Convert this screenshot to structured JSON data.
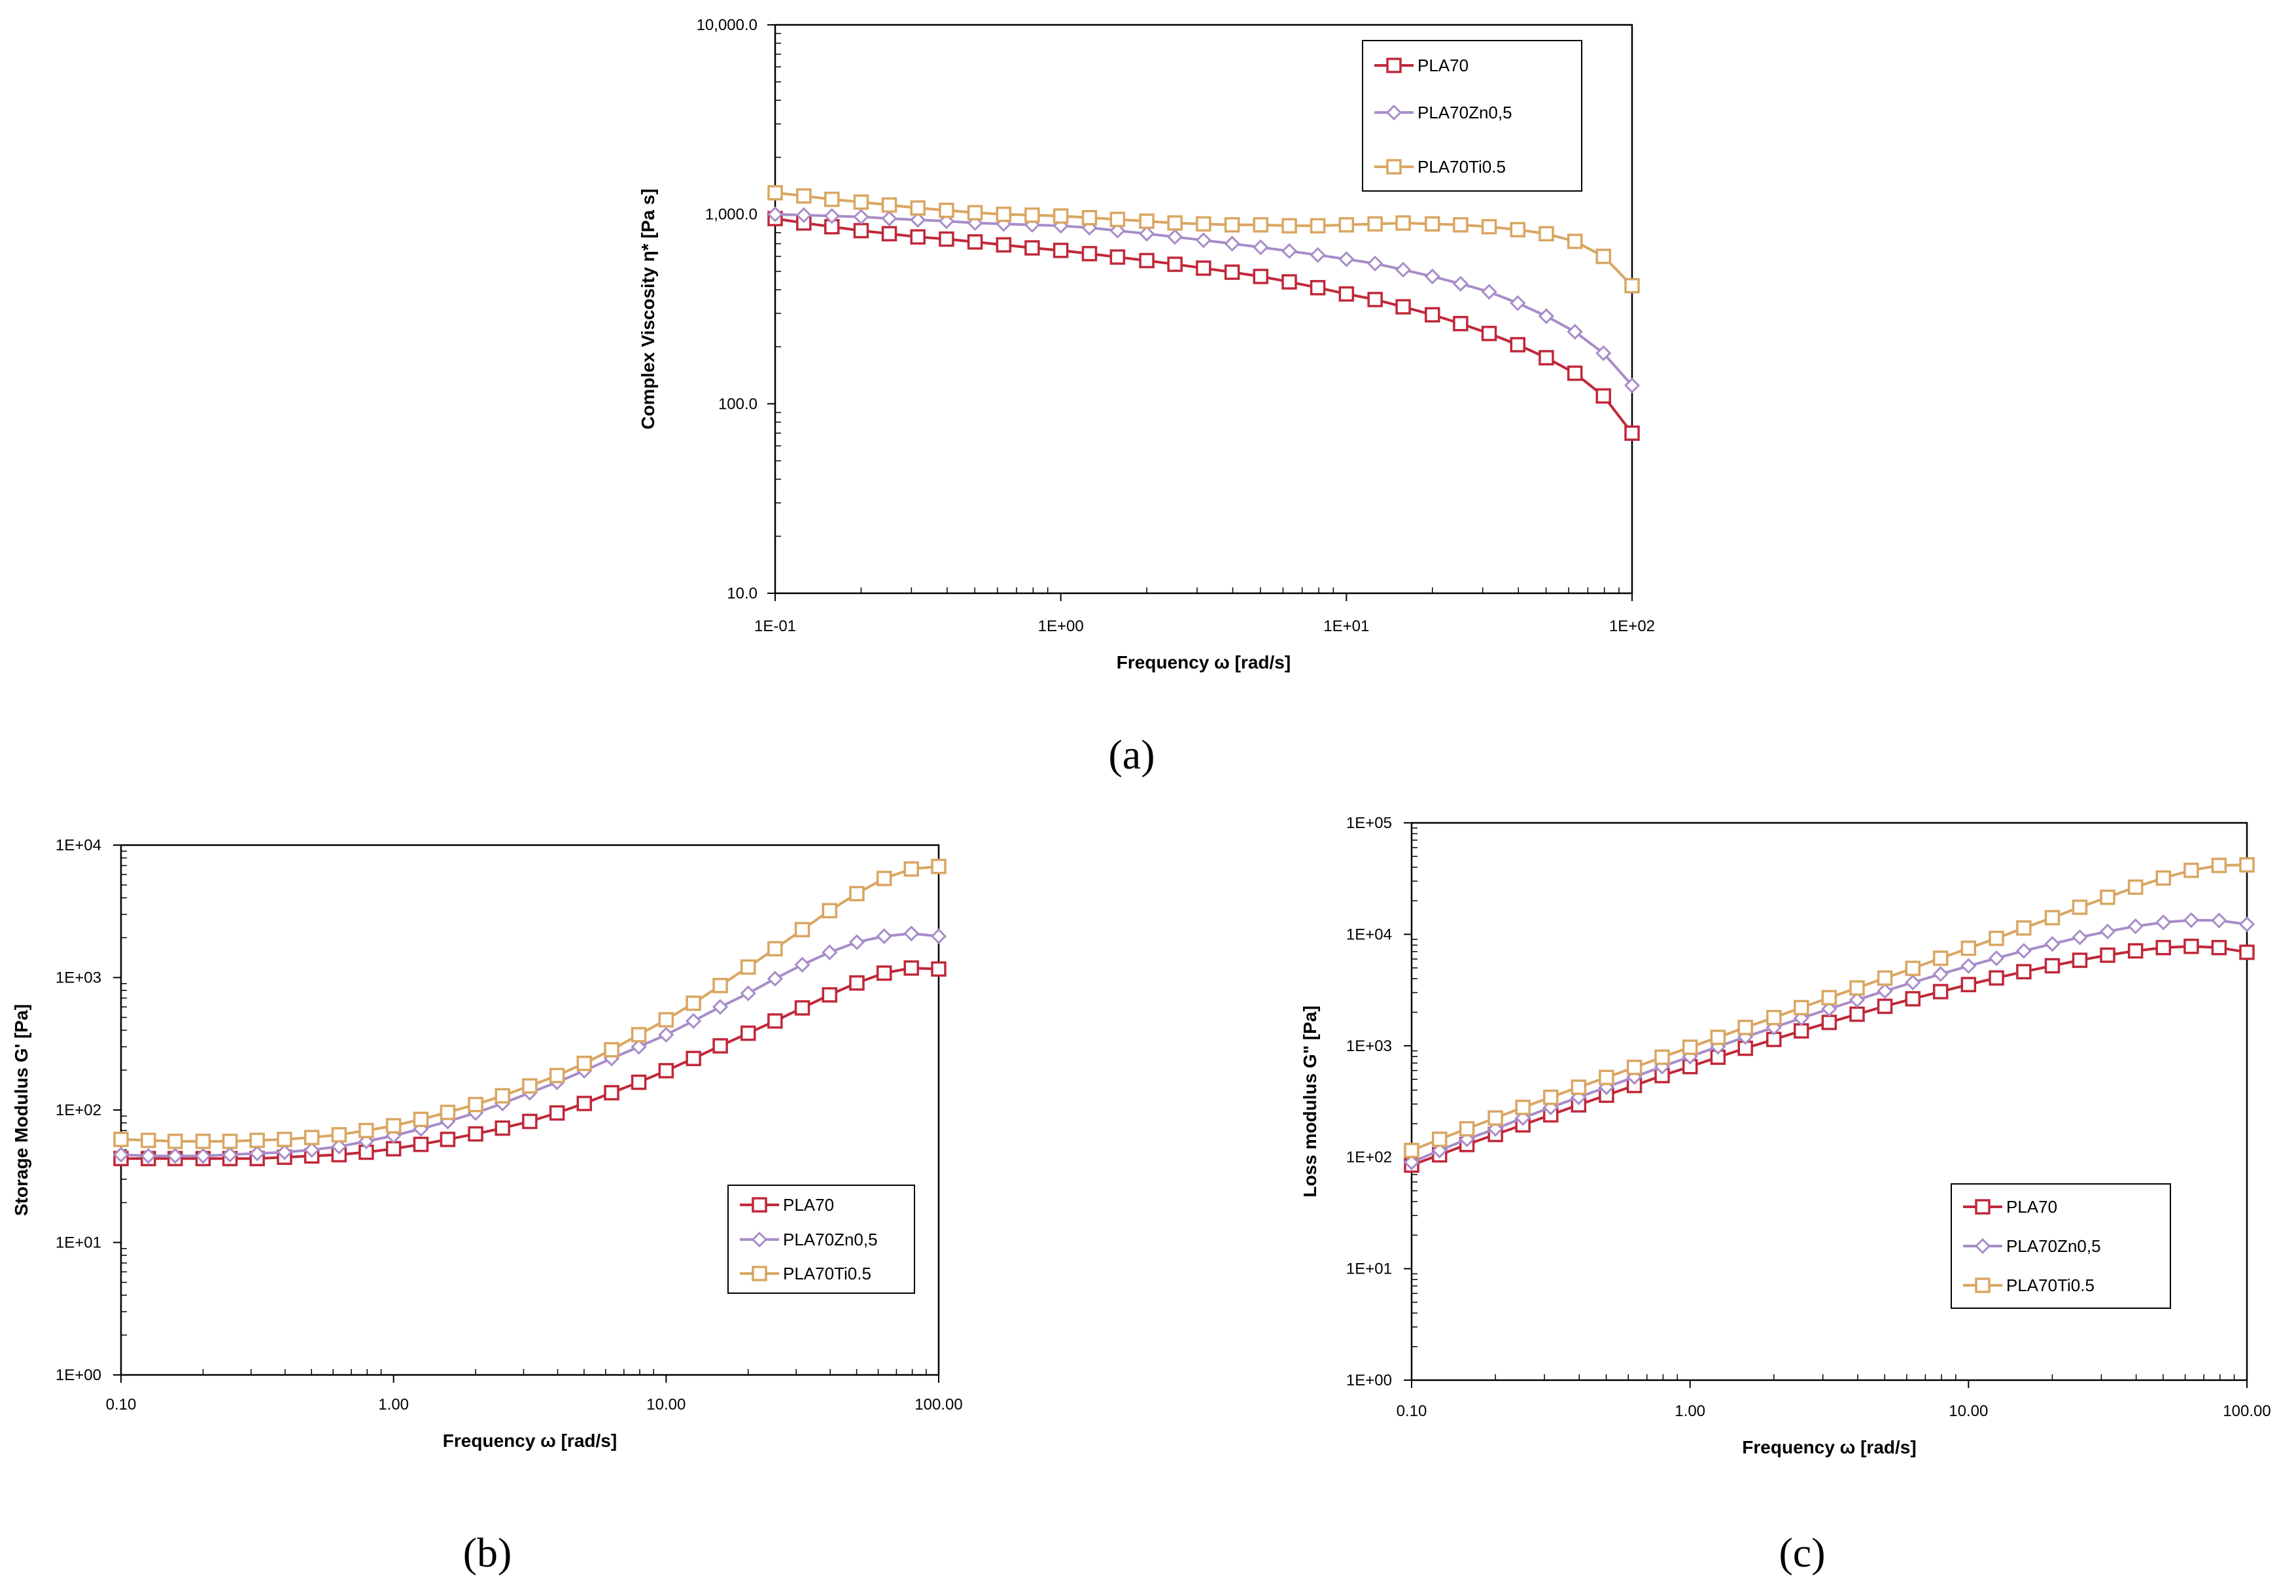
{
  "colors": {
    "PLA70": "#c0283a",
    "PLA70Zn0,5": "#a88cc8",
    "PLA70Ti0.5": "#d9a662"
  },
  "chart_data": [
    {
      "id": "a",
      "panel_label": "(a)",
      "type": "line",
      "xscale": "log",
      "yscale": "log",
      "xlim": [
        0.1,
        100
      ],
      "ylim": [
        10,
        10000
      ],
      "xlabel": "Frequency ω [rad/s]",
      "ylabel": "Complex Viscosity η* [Pa s]",
      "xticks": [
        0.1,
        1,
        10,
        100
      ],
      "xtick_labels": [
        "1E-01",
        "1E+00",
        "1E+01",
        "1E+02"
      ],
      "yticks": [
        10,
        100,
        1000,
        10000
      ],
      "ytick_labels": [
        "10.0",
        "100.0",
        "1,000.0",
        "10,000.0"
      ],
      "legend": "top-right",
      "x": [
        0.1,
        0.126,
        0.158,
        0.2,
        0.251,
        0.316,
        0.398,
        0.501,
        0.631,
        0.794,
        1,
        1.26,
        1.58,
        2,
        2.51,
        3.16,
        3.98,
        5.01,
        6.31,
        7.94,
        10,
        12.6,
        15.8,
        20,
        25.1,
        31.6,
        39.8,
        50.1,
        63.1,
        79.4,
        100
      ],
      "series": [
        {
          "name": "PLA70",
          "marker": "square",
          "values": [
            950,
            900,
            860,
            820,
            790,
            760,
            740,
            715,
            690,
            665,
            645,
            620,
            595,
            570,
            545,
            520,
            495,
            470,
            440,
            410,
            380,
            355,
            325,
            295,
            265,
            235,
            205,
            175,
            145,
            110,
            70
          ]
        },
        {
          "name": "PLA70Zn0,5",
          "marker": "diamond",
          "values": [
            1000,
            990,
            980,
            970,
            950,
            935,
            920,
            900,
            890,
            880,
            870,
            850,
            820,
            790,
            760,
            730,
            700,
            670,
            640,
            610,
            580,
            550,
            510,
            470,
            430,
            390,
            340,
            290,
            240,
            185,
            125
          ]
        },
        {
          "name": "PLA70Ti0.5",
          "marker": "square",
          "values": [
            1300,
            1250,
            1200,
            1160,
            1120,
            1080,
            1050,
            1020,
            1000,
            990,
            980,
            960,
            940,
            920,
            900,
            890,
            880,
            880,
            870,
            870,
            880,
            890,
            900,
            890,
            880,
            860,
            830,
            790,
            720,
            600,
            420
          ]
        }
      ]
    },
    {
      "id": "b",
      "panel_label": "(b)",
      "type": "line",
      "xscale": "log",
      "yscale": "log",
      "xlim": [
        0.1,
        100
      ],
      "ylim": [
        1,
        10000
      ],
      "xlabel": "Frequency ω [rad/s]",
      "ylabel": "Storage Modulus G' [Pa]",
      "xticks": [
        0.1,
        1,
        10,
        100
      ],
      "xtick_labels": [
        "0.10",
        "1.00",
        "10.00",
        "100.00"
      ],
      "yticks": [
        1,
        10,
        100,
        1000,
        10000
      ],
      "ytick_labels": [
        "1E+00",
        "1E+01",
        "1E+02",
        "1E+03",
        "1E+04"
      ],
      "legend": "bottom-right",
      "x": [
        0.1,
        0.126,
        0.158,
        0.2,
        0.251,
        0.316,
        0.398,
        0.501,
        0.631,
        0.794,
        1,
        1.26,
        1.58,
        2,
        2.51,
        3.16,
        3.98,
        5.01,
        6.31,
        7.94,
        10,
        12.6,
        15.8,
        20,
        25.1,
        31.6,
        39.8,
        50.1,
        63.1,
        79.4,
        100
      ],
      "series": [
        {
          "name": "PLA70",
          "marker": "square",
          "values": [
            43,
            43,
            43,
            43,
            43,
            43,
            44,
            45,
            46,
            48,
            51,
            55,
            60,
            66,
            73,
            82,
            95,
            112,
            135,
            162,
            198,
            245,
            305,
            380,
            470,
            590,
            740,
            910,
            1080,
            1180,
            1160
          ]
        },
        {
          "name": "PLA70Zn0,5",
          "marker": "diamond",
          "values": [
            46,
            45,
            45,
            45,
            46,
            47,
            48,
            50,
            53,
            58,
            64,
            72,
            82,
            95,
            112,
            135,
            162,
            198,
            245,
            300,
            370,
            470,
            600,
            760,
            980,
            1250,
            1550,
            1850,
            2050,
            2150,
            2050
          ]
        },
        {
          "name": "PLA70Ti0.5",
          "marker": "square",
          "values": [
            60,
            59,
            58,
            58,
            58,
            59,
            60,
            62,
            65,
            70,
            76,
            85,
            96,
            110,
            128,
            152,
            182,
            225,
            285,
            370,
            480,
            640,
            870,
            1200,
            1650,
            2300,
            3200,
            4300,
            5600,
            6600,
            6900
          ]
        }
      ]
    },
    {
      "id": "c",
      "panel_label": "(c)",
      "type": "line",
      "xscale": "log",
      "yscale": "log",
      "xlim": [
        0.1,
        100
      ],
      "ylim": [
        1,
        100000
      ],
      "xlabel": "Frequency ω [rad/s]",
      "ylabel": "Loss modulus G\" [Pa]",
      "xticks": [
        0.1,
        1,
        10,
        100
      ],
      "xtick_labels": [
        "0.10",
        "1.00",
        "10.00",
        "100.00"
      ],
      "yticks": [
        1,
        10,
        100,
        1000,
        10000,
        100000
      ],
      "ytick_labels": [
        "1E+00",
        "1E+01",
        "1E+02",
        "1E+03",
        "1E+04",
        "1E+05"
      ],
      "legend": "bottom-right",
      "x": [
        0.1,
        0.126,
        0.158,
        0.2,
        0.251,
        0.316,
        0.398,
        0.501,
        0.631,
        0.794,
        1,
        1.26,
        1.58,
        2,
        2.51,
        3.16,
        3.98,
        5.01,
        6.31,
        7.94,
        10,
        12.6,
        15.8,
        20,
        25.1,
        31.6,
        39.8,
        50.1,
        63.1,
        79.4,
        100
      ],
      "series": [
        {
          "name": "PLA70",
          "marker": "square",
          "values": [
            85,
            105,
            130,
            160,
            195,
            240,
            295,
            360,
            440,
            540,
            650,
            790,
            950,
            1140,
            1360,
            1620,
            1920,
            2260,
            2640,
            3060,
            3540,
            4060,
            4620,
            5220,
            5850,
            6500,
            7100,
            7600,
            7800,
            7600,
            6900
          ]
        },
        {
          "name": "PLA70Zn0,5",
          "marker": "diamond",
          "values": [
            90,
            115,
            145,
            180,
            225,
            280,
            345,
            425,
            525,
            650,
            800,
            980,
            1200,
            1460,
            1770,
            2140,
            2580,
            3100,
            3700,
            4400,
            5200,
            6100,
            7100,
            8200,
            9400,
            10600,
            11800,
            12800,
            13400,
            13300,
            12300
          ]
        },
        {
          "name": "PLA70Ti0.5",
          "marker": "square",
          "values": [
            115,
            145,
            180,
            225,
            280,
            345,
            425,
            520,
            640,
            790,
            970,
            1190,
            1460,
            1790,
            2200,
            2700,
            3300,
            4050,
            4950,
            6100,
            7500,
            9200,
            11400,
            14100,
            17500,
            21500,
            26500,
            32000,
            37500,
            41500,
            42000
          ]
        }
      ]
    }
  ]
}
